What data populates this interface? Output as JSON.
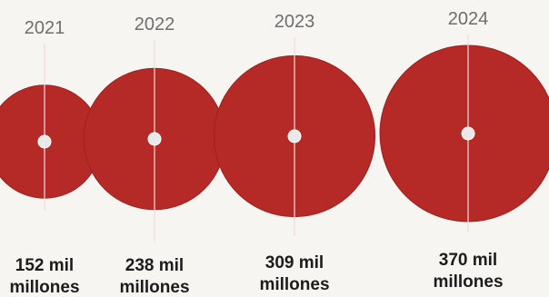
{
  "chart_data": {
    "type": "bubble",
    "title": "",
    "categories": [
      "2021",
      "2022",
      "2023",
      "2024"
    ],
    "values": [
      152,
      238,
      309,
      370
    ],
    "value_labels": [
      [
        "152 mil",
        "millones"
      ],
      [
        "238 mil",
        "millones"
      ],
      [
        "309 mil",
        "millones"
      ],
      [
        "370 mil",
        "millones"
      ]
    ],
    "colors": {
      "bubble": "#b52a26",
      "bubble_edge": "#9c221f",
      "axis_line": "#f2dada",
      "center_dot": "#e9e9e9",
      "year_text": "#6e6e6e",
      "value_text": "#1c1c1c"
    },
    "legend": "none",
    "grid": false
  }
}
